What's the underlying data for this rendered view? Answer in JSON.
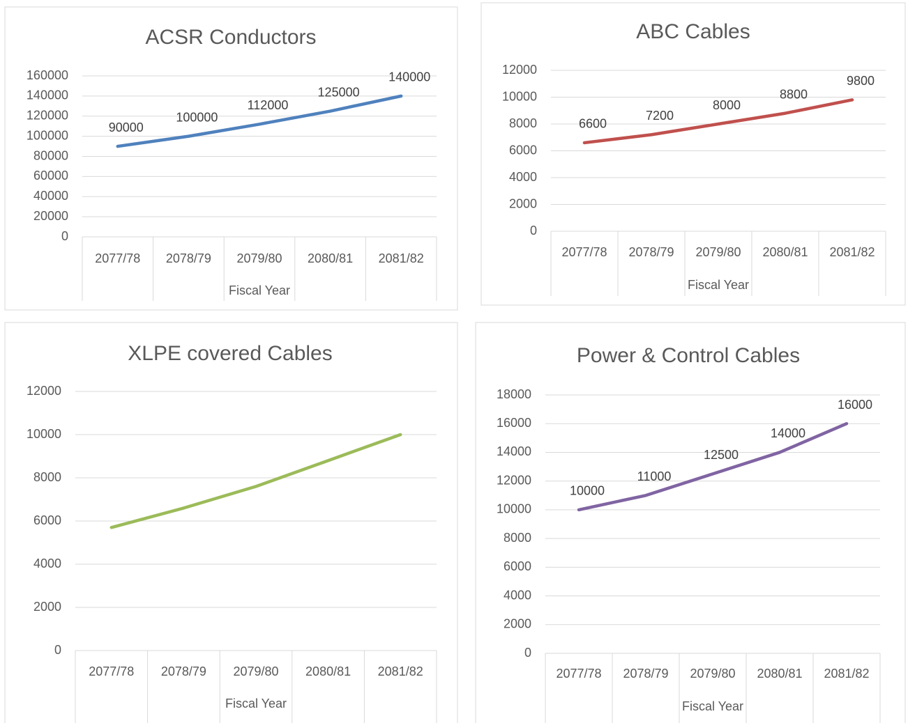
{
  "chart_data": [
    {
      "type": "line",
      "title": "ACSR Conductors",
      "x_label": "Fiscal Year",
      "categories": [
        "2077/78",
        "2078/79",
        "2079/80",
        "2080/81",
        "2081/82"
      ],
      "values": [
        90000,
        100000,
        112000,
        125000,
        140000
      ],
      "color": "#4f81bd",
      "ylim": [
        0,
        160000
      ],
      "yticks": [
        0,
        20000,
        40000,
        60000,
        80000,
        100000,
        120000,
        140000,
        160000
      ],
      "grid": true,
      "data_labels": true
    },
    {
      "type": "line",
      "title": "ABC Cables",
      "x_label": "Fiscal Year",
      "categories": [
        "2077/78",
        "2078/79",
        "2079/80",
        "2080/81",
        "2081/82"
      ],
      "values": [
        6600,
        7200,
        8000,
        8800,
        9800
      ],
      "color": "#c0504d",
      "ylim": [
        0,
        12000
      ],
      "yticks": [
        0,
        2000,
        4000,
        6000,
        8000,
        10000,
        12000
      ],
      "grid": true,
      "data_labels": true
    },
    {
      "type": "line",
      "title": "XLPE covered Cables",
      "x_label": "Fiscal Year",
      "categories": [
        "2077/78",
        "2078/79",
        "2079/80",
        "2080/81",
        "2081/82"
      ],
      "values": [
        5700,
        6600,
        7600,
        8800,
        10000
      ],
      "color": "#9bbb59",
      "ylim": [
        0,
        12000
      ],
      "yticks": [
        0,
        2000,
        4000,
        6000,
        8000,
        10000,
        12000
      ],
      "grid": true,
      "data_labels": false
    },
    {
      "type": "line",
      "title": "Power & Control Cables",
      "x_label": "Fiscal Year",
      "categories": [
        "2077/78",
        "2078/79",
        "2079/80",
        "2080/81",
        "2081/82"
      ],
      "values": [
        10000,
        11000,
        12500,
        14000,
        16000
      ],
      "color": "#8064a2",
      "ylim": [
        0,
        18000
      ],
      "yticks": [
        0,
        2000,
        4000,
        6000,
        8000,
        10000,
        12000,
        14000,
        16000,
        18000
      ],
      "grid": true,
      "data_labels": true
    }
  ]
}
